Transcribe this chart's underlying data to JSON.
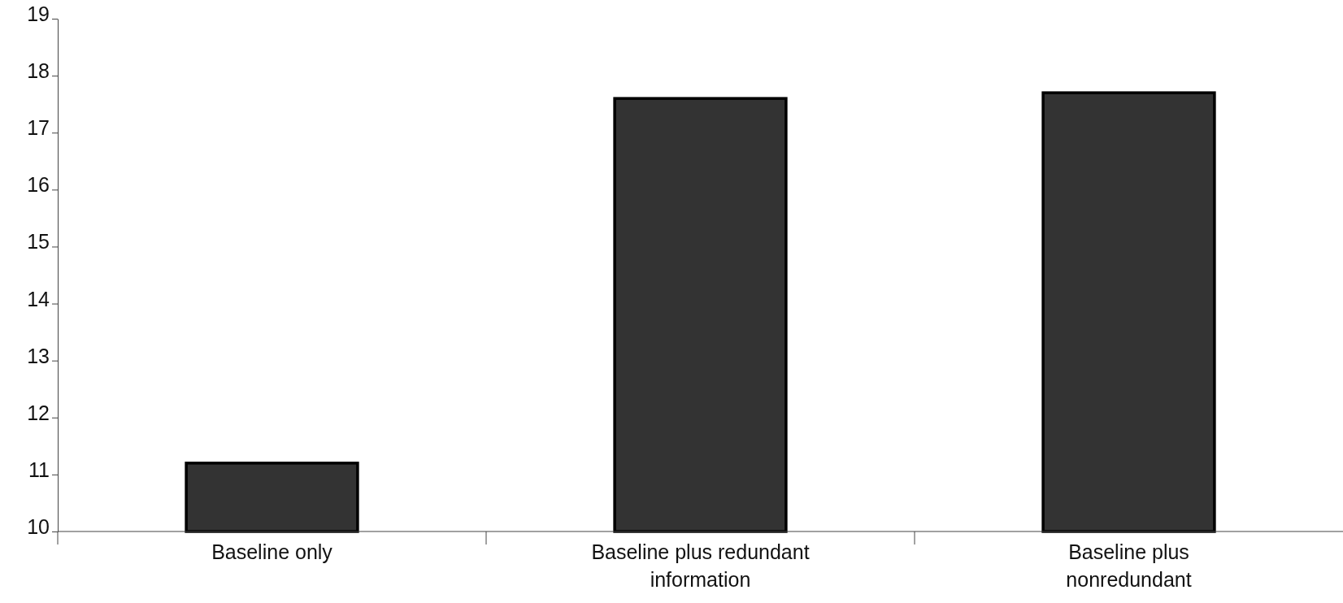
{
  "chart_data": {
    "type": "bar",
    "categories": [
      "Baseline only",
      "Baseline plus redundant information",
      "Baseline plus nonredundant"
    ],
    "values": [
      11.2,
      17.6,
      17.7
    ],
    "color": "#333333",
    "ylim": [
      10,
      19
    ],
    "yticks": [
      10,
      11,
      12,
      13,
      14,
      15,
      16,
      17,
      18,
      19
    ],
    "grid": false
  }
}
